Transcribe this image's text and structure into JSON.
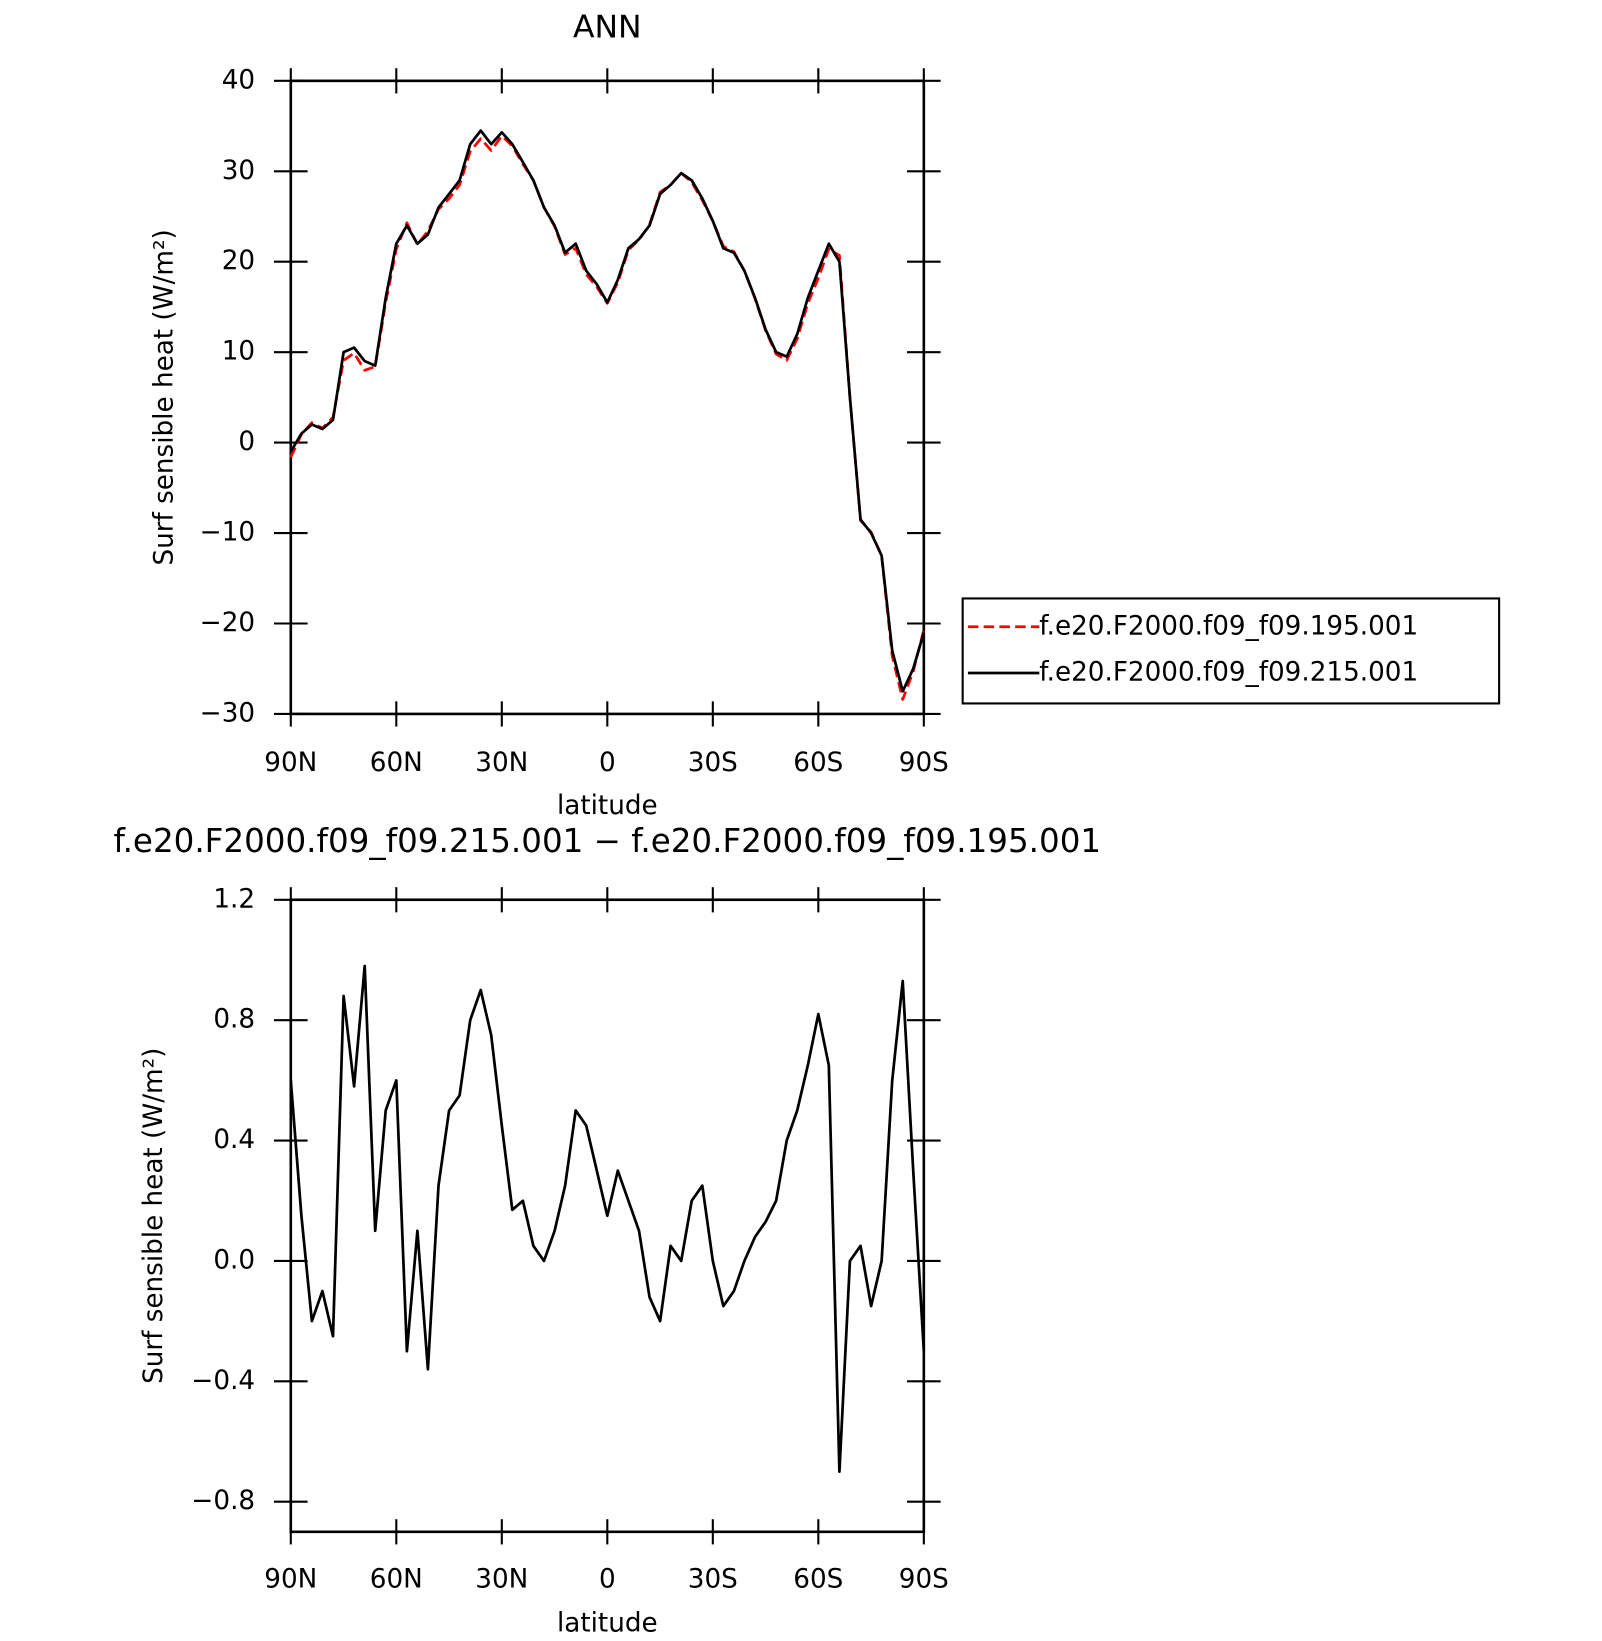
{
  "chart_data": [
    {
      "type": "line",
      "title": "ANN",
      "x_label": "latitude",
      "y_label": "Surf sensible heat (W/m²)",
      "x": [
        90,
        87,
        84,
        81,
        78,
        75,
        72,
        69,
        66,
        63,
        60,
        57,
        54,
        51,
        48,
        45,
        42,
        39,
        36,
        33,
        30,
        27,
        24,
        21,
        18,
        15,
        12,
        9,
        6,
        3,
        0,
        -3,
        -6,
        -9,
        -12,
        -15,
        -18,
        -21,
        -24,
        -27,
        -30,
        -33,
        -36,
        -39,
        -42,
        -45,
        -48,
        -51,
        -54,
        -57,
        -60,
        -63,
        -66,
        -69,
        -72,
        -75,
        -78,
        -81,
        -84,
        -87,
        -90
      ],
      "xlim": [
        90,
        -90
      ],
      "xticks": [
        {
          "value": 90,
          "label": "90N"
        },
        {
          "value": 60,
          "label": "60N"
        },
        {
          "value": 30,
          "label": "30N"
        },
        0,
        {
          "value": -30,
          "label": "30S"
        },
        {
          "value": -60,
          "label": "60S"
        },
        {
          "value": -90,
          "label": "90S"
        }
      ],
      "ylim": [
        -30,
        40
      ],
      "yticks": [
        {
          "value": -30,
          "label": "−30"
        },
        {
          "value": -20,
          "label": "−20"
        },
        {
          "value": -10,
          "label": "−10"
        },
        0,
        10,
        20,
        30,
        40
      ],
      "legend": "right",
      "series": [
        {
          "name": "f.e20.F2000.f09_f09.195.001",
          "color": "#ff0000",
          "dashed": true,
          "values": [
            -1.6,
            0.9,
            2.2,
            1.6,
            2.8,
            9.1,
            9.9,
            8.0,
            8.4,
            15.5,
            21.4,
            24.3,
            21.9,
            23.4,
            25.8,
            27.0,
            28.5,
            32.2,
            33.6,
            32.3,
            33.9,
            32.8,
            30.8,
            29.0,
            26.0,
            23.9,
            20.8,
            21.5,
            18.6,
            17.2,
            15.4,
            17.7,
            21.3,
            22.4,
            24.1,
            27.7,
            28.5,
            29.8,
            28.8,
            26.8,
            24.5,
            21.7,
            21.1,
            19.0,
            15.9,
            12.4,
            9.8,
            9.1,
            11.5,
            15.4,
            18.2,
            21.4,
            20.7,
            5.0,
            -8.6,
            -9.9,
            -12.5,
            -23.6,
            -28.4,
            -25.3,
            -20.7
          ]
        },
        {
          "name": "f.e20.F2000.f09_f09.215.001",
          "color": "#000000",
          "dashed": false,
          "values": [
            -1,
            1,
            2,
            1.5,
            2.5,
            10,
            10.5,
            9,
            8.5,
            16,
            22,
            24,
            22,
            23,
            26,
            27.5,
            29,
            33,
            34.5,
            33,
            34.3,
            33,
            31,
            29,
            26,
            24,
            21,
            22,
            19,
            17.5,
            15.5,
            18,
            21.5,
            22.5,
            24,
            27.5,
            28.5,
            29.8,
            29,
            27,
            24.5,
            21.5,
            21,
            19,
            16,
            12.5,
            10,
            9.5,
            12,
            16,
            19,
            22,
            20,
            5,
            -8.5,
            -10,
            -12.5,
            -23,
            -27.5,
            -25,
            -21
          ]
        }
      ]
    },
    {
      "type": "line",
      "title": "f.e20.F2000.f09_f09.215.001 − f.e20.F2000.f09_f09.195.001",
      "x_label": "latitude",
      "y_label": "Surf sensible heat (W/m²)",
      "x": [
        90,
        87,
        84,
        81,
        78,
        75,
        72,
        69,
        66,
        63,
        60,
        57,
        54,
        51,
        48,
        45,
        42,
        39,
        36,
        33,
        30,
        27,
        24,
        21,
        18,
        15,
        12,
        9,
        6,
        3,
        0,
        -3,
        -6,
        -9,
        -12,
        -15,
        -18,
        -21,
        -24,
        -27,
        -30,
        -33,
        -36,
        -39,
        -42,
        -45,
        -48,
        -51,
        -54,
        -57,
        -60,
        -63,
        -66,
        -69,
        -72,
        -75,
        -78,
        -81,
        -84,
        -87,
        -90
      ],
      "xlim": [
        90,
        -90
      ],
      "xticks": [
        {
          "value": 90,
          "label": "90N"
        },
        {
          "value": 60,
          "label": "60N"
        },
        {
          "value": 30,
          "label": "30N"
        },
        0,
        {
          "value": -30,
          "label": "30S"
        },
        {
          "value": -60,
          "label": "60S"
        },
        {
          "value": -90,
          "label": "90S"
        }
      ],
      "ylim": [
        -0.9,
        1.2
      ],
      "yticks": [
        {
          "value": -0.8,
          "label": "−0.8"
        },
        {
          "value": -0.4,
          "label": "−0.4"
        },
        {
          "value": 0,
          "label": "0.0"
        },
        0.4,
        0.8,
        1.2
      ],
      "series": [
        {
          "color": "#000000",
          "dashed": false,
          "values": [
            0.6,
            0.15,
            -0.2,
            -0.1,
            -0.25,
            0.88,
            0.58,
            0.98,
            0.1,
            0.5,
            0.6,
            -0.3,
            0.1,
            -0.36,
            0.25,
            0.5,
            0.55,
            0.8,
            0.9,
            0.75,
            0.45,
            0.17,
            0.2,
            0.05,
            0.0,
            0.1,
            0.25,
            0.5,
            0.45,
            0.3,
            0.15,
            0.3,
            0.2,
            0.1,
            -0.12,
            -0.2,
            0.05,
            0.0,
            0.2,
            0.25,
            0.0,
            -0.15,
            -0.1,
            0.0,
            0.08,
            0.13,
            0.2,
            0.4,
            0.5,
            0.65,
            0.82,
            0.65,
            -0.7,
            0.0,
            0.05,
            -0.15,
            0.0,
            0.6,
            0.93,
            0.3,
            -0.3
          ]
        }
      ]
    }
  ]
}
